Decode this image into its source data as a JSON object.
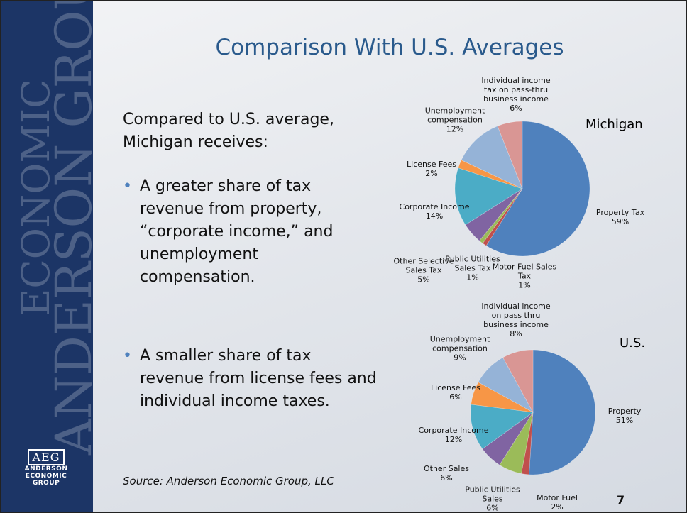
{
  "sidebar": {
    "line1": "ECONOMIC",
    "line2": "ANDERSON GROUP"
  },
  "logo": {
    "mark": "AEG",
    "lines": [
      "ANDERSON",
      "ECONOMIC",
      "GROUP"
    ]
  },
  "title": "Comparison With U.S. Averages",
  "intro": "Compared to U.S. average, Michigan receives:",
  "bullets": [
    "A greater share of tax revenue from property, “corporate income,” and unemployment compensation.",
    "A smaller share of tax revenue from license fees and individual income taxes."
  ],
  "source": "Source: Anderson Economic Group, LLC",
  "page_number": "7",
  "chart_data": [
    {
      "type": "pie",
      "title": "Michigan",
      "categories": [
        "Property Tax",
        "Motor Fuel Sales Tax",
        "Public Utilities Sales Tax",
        "Other Selective Sales Tax",
        "Corporate Income",
        "License Fees",
        "Unemployment compensation",
        "Individual income tax on pass-thru business income"
      ],
      "values": [
        59,
        1,
        1,
        5,
        14,
        2,
        12,
        6
      ],
      "value_labels": [
        "59%",
        "1%",
        "1%",
        "5%",
        "14%",
        "2%",
        "12%",
        "6%"
      ],
      "colors": [
        "#4f81bd",
        "#c0504d",
        "#9bbb59",
        "#8064a2",
        "#4bacc6",
        "#f79646",
        "#95b3d7",
        "#d99694"
      ]
    },
    {
      "type": "pie",
      "title": "U.S.",
      "categories": [
        "Property",
        "Motor Fuel",
        "Public Utilities Sales",
        "Other Sales",
        "Corporate Income",
        "License Fees",
        "Unemployment compensation",
        "Individual income on pass thru business income"
      ],
      "values": [
        51,
        2,
        6,
        6,
        12,
        6,
        9,
        8
      ],
      "value_labels": [
        "51%",
        "2%",
        "6%",
        "6%",
        "12%",
        "6%",
        "9%",
        "8%"
      ],
      "colors": [
        "#4f81bd",
        "#c0504d",
        "#9bbb59",
        "#8064a2",
        "#4bacc6",
        "#f79646",
        "#95b3d7",
        "#d99694"
      ]
    }
  ]
}
